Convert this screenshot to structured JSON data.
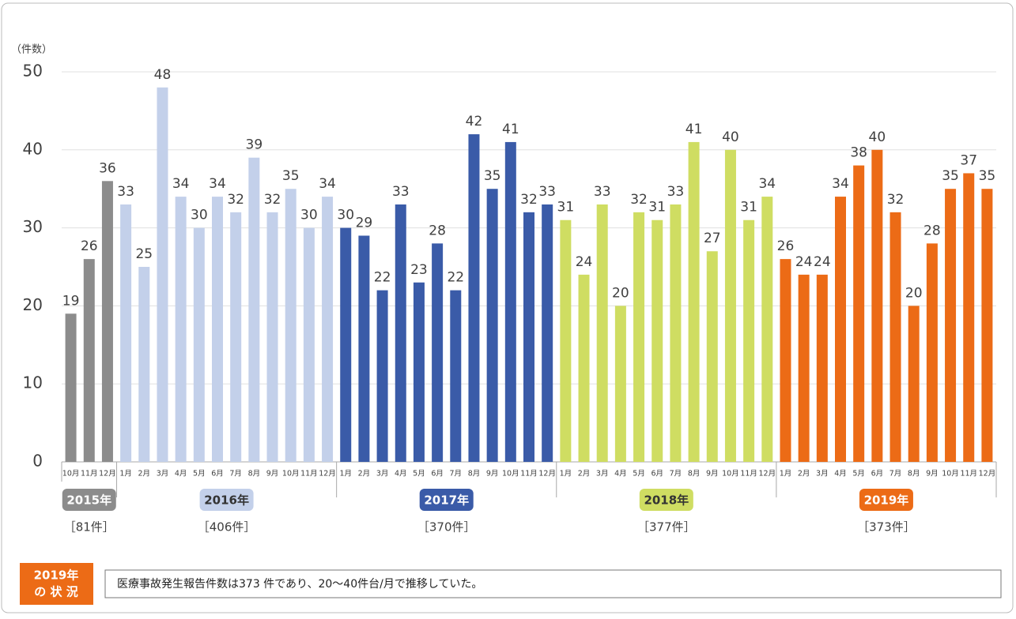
{
  "chart_data": {
    "type": "bar",
    "y_label": "（件数）",
    "ylim": [
      0,
      50
    ],
    "yticks": [
      0,
      10,
      20,
      30,
      40,
      50
    ],
    "grid": true,
    "series": [
      {
        "name": "2015年",
        "color": "#8c8c8c",
        "total_label": "［81件］",
        "categories": [
          "10月",
          "11月",
          "12月"
        ],
        "values": [
          19,
          26,
          36
        ]
      },
      {
        "name": "2016年",
        "color": "#c3d0ea",
        "total_label": "［406件］",
        "categories": [
          "1月",
          "2月",
          "3月",
          "4月",
          "5月",
          "6月",
          "7月",
          "8月",
          "9月",
          "10月",
          "11月",
          "12月"
        ],
        "values": [
          33,
          25,
          48,
          34,
          30,
          34,
          32,
          39,
          32,
          35,
          30,
          34
        ]
      },
      {
        "name": "2017年",
        "color": "#3a5ba8",
        "total_label": "［370件］",
        "categories": [
          "1月",
          "2月",
          "3月",
          "4月",
          "5月",
          "6月",
          "7月",
          "8月",
          "9月",
          "10月",
          "11月",
          "12月"
        ],
        "values": [
          30,
          29,
          22,
          33,
          23,
          28,
          22,
          42,
          35,
          41,
          32,
          33
        ]
      },
      {
        "name": "2018年",
        "color": "#cfdd62",
        "total_label": "［377件］",
        "categories": [
          "1月",
          "2月",
          "3月",
          "4月",
          "5月",
          "6月",
          "7月",
          "8月",
          "9月",
          "10月",
          "11月",
          "12月"
        ],
        "values": [
          31,
          24,
          33,
          20,
          32,
          31,
          33,
          41,
          27,
          40,
          31,
          34
        ]
      },
      {
        "name": "2019年",
        "color": "#ec6b16",
        "total_label": "［373件］",
        "categories": [
          "1月",
          "2月",
          "3月",
          "4月",
          "5月",
          "6月",
          "7月",
          "8月",
          "9月",
          "10月",
          "11月",
          "12月"
        ],
        "values": [
          26,
          24,
          24,
          34,
          38,
          40,
          32,
          20,
          28,
          35,
          37,
          35
        ]
      }
    ]
  },
  "summary": {
    "tag": [
      "2019年",
      "の 状 況"
    ],
    "text": "医療事故発生報告件数は373 件であり、20～40件台/月で推移していた。"
  }
}
